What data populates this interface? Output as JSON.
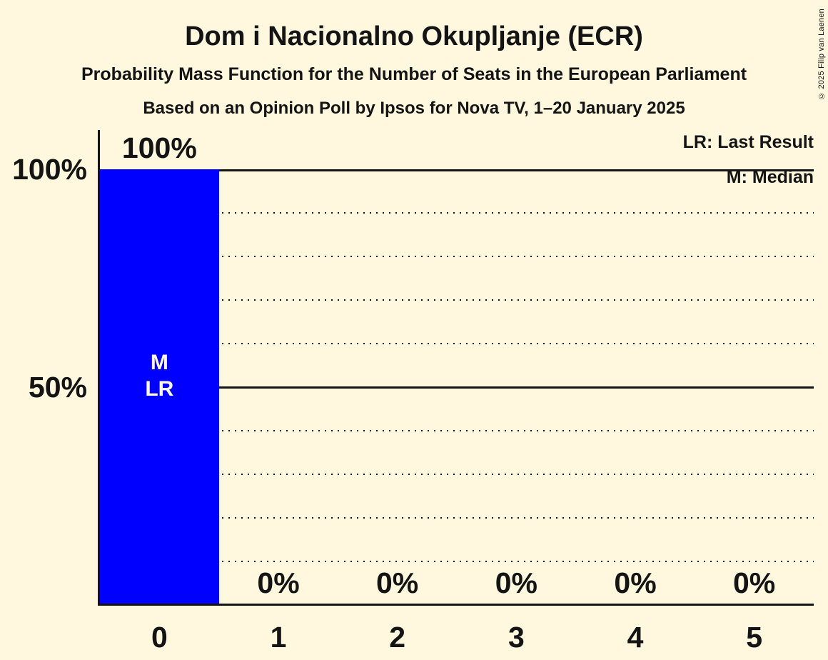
{
  "page": {
    "background_color": "#FFF8DE",
    "text_color": "#141414"
  },
  "header": {
    "title": "Dom i Nacionalno Okupljanje (ECR)",
    "subtitle": "Probability Mass Function for the Number of Seats in the European Parliament",
    "poll_info": "Based on an Opinion Poll by Ipsos for Nova TV, 1–20 January 2025"
  },
  "copyright": "© 2025 Filip van Laenen",
  "legend": {
    "last_result": "LR: Last Result",
    "median": "M: Median"
  },
  "chart_data": {
    "type": "bar",
    "title": "Dom i Nacionalno Okupljanje (ECR)",
    "xlabel": "",
    "ylabel": "",
    "categories": [
      "0",
      "1",
      "2",
      "3",
      "4",
      "5"
    ],
    "values": [
      100,
      0,
      0,
      0,
      0,
      0
    ],
    "bar_value_labels": [
      "100%",
      "0%",
      "0%",
      "0%",
      "0%",
      "0%"
    ],
    "bar_color": "#0000FF",
    "ylim": [
      0,
      100
    ],
    "y_tick_labels": [
      "100%",
      "50%"
    ],
    "y_ticks_pct": [
      100,
      50
    ],
    "gridlines": {
      "solid_pct": [
        100,
        50
      ],
      "dotted_pct": [
        90,
        80,
        70,
        60,
        40,
        30,
        20,
        10
      ]
    },
    "annotations": {
      "marker_column": "0",
      "median_marker": "M",
      "last_result_marker": "LR"
    }
  }
}
